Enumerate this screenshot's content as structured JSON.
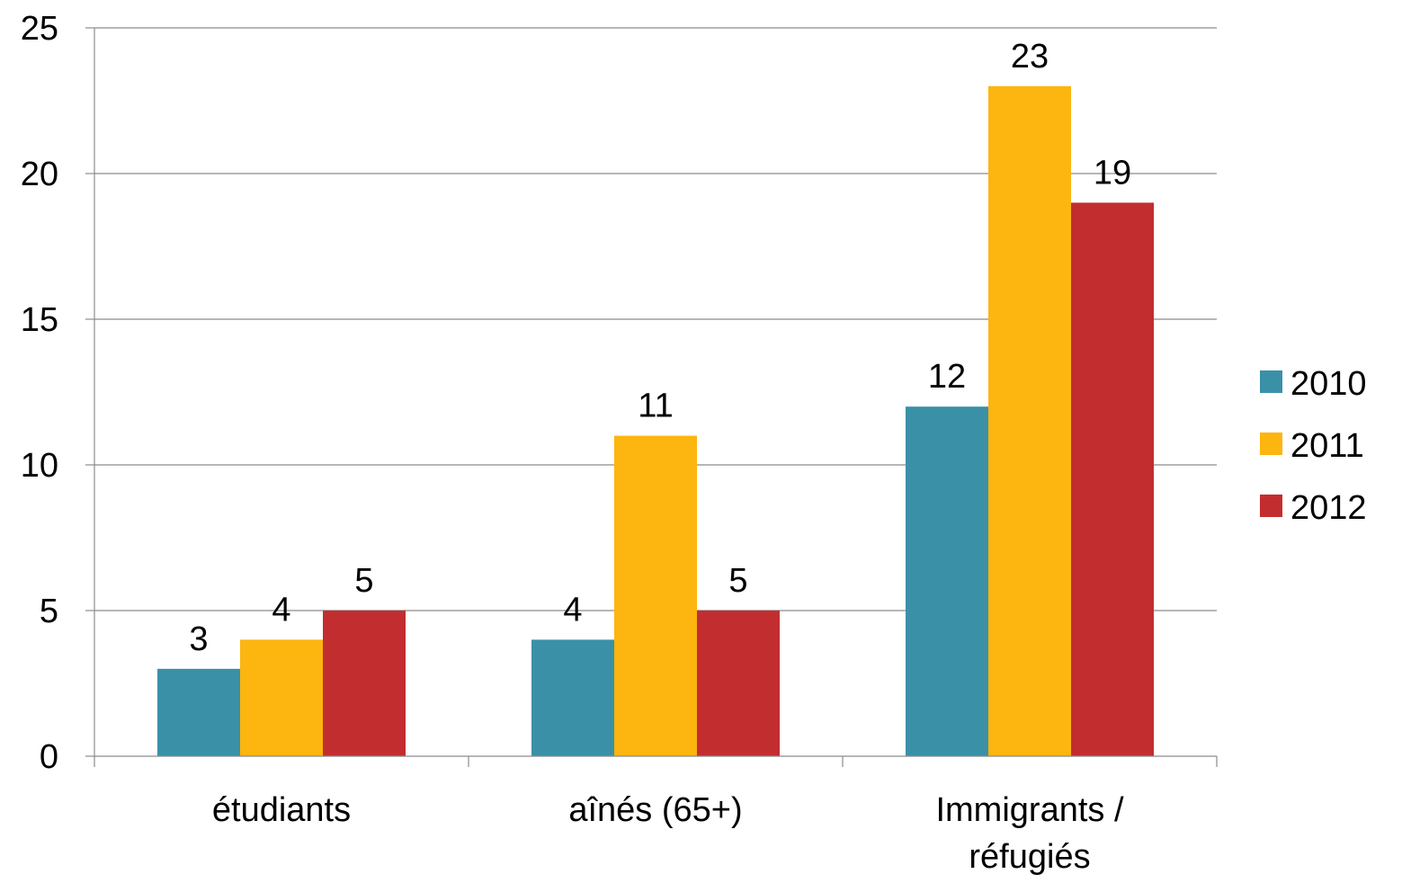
{
  "chart_data": {
    "type": "bar",
    "categories": [
      "étudiants",
      "aînés (65+)",
      "Immigrants / réfugiés"
    ],
    "category_lines": [
      [
        "étudiants"
      ],
      [
        "aînés (65+)"
      ],
      [
        "Immigrants /",
        "réfugiés"
      ]
    ],
    "series": [
      {
        "name": "2010",
        "color": "#3a91a7",
        "values": [
          3,
          4,
          12
        ]
      },
      {
        "name": "2011",
        "color": "#fdb50f",
        "values": [
          4,
          11,
          23
        ]
      },
      {
        "name": "2012",
        "color": "#c22e2f",
        "values": [
          5,
          5,
          19
        ]
      }
    ],
    "ylim": [
      0,
      25
    ],
    "yticks": [
      0,
      5,
      10,
      15,
      20,
      25
    ],
    "grid": true,
    "legend_position": "right",
    "data_labels": true
  }
}
